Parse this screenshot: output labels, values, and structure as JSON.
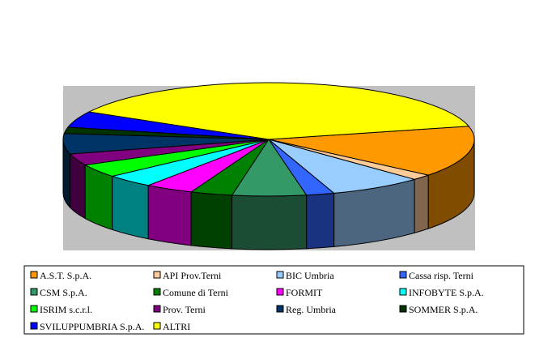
{
  "chart_data": {
    "type": "pie",
    "style": "3d",
    "legend_position": "bottom",
    "plot_background": "#c0c0c0",
    "categories": [
      "A.S.T. S.p.A.",
      "API Prov.Terni",
      "BIC Umbria",
      "Cassa risp. Terni",
      "CSM S.p.A.",
      "Comune di Terni",
      "FORMIT",
      "INFOBYTE S.p.A.",
      "ISRIM s.c.r.l.",
      "Prov. Terni",
      "Reg. Umbria",
      "SOMMER S.p.A.",
      "SVILUPPUMBRIA S.p.A.",
      "ALTRI"
    ],
    "values": [
      14.6,
      1.6,
      7.4,
      2.2,
      5.8,
      3.3,
      3.8,
      3.8,
      3.8,
      3.3,
      5.8,
      1.8,
      4.6,
      38.2
    ],
    "colors": [
      "#ff9900",
      "#ffcc99",
      "#99ccff",
      "#3366ff",
      "#339966",
      "#008000",
      "#ff00ff",
      "#00ffff",
      "#00ff00",
      "#800080",
      "#003366",
      "#003300",
      "#0000ff",
      "#ffff00"
    ]
  }
}
